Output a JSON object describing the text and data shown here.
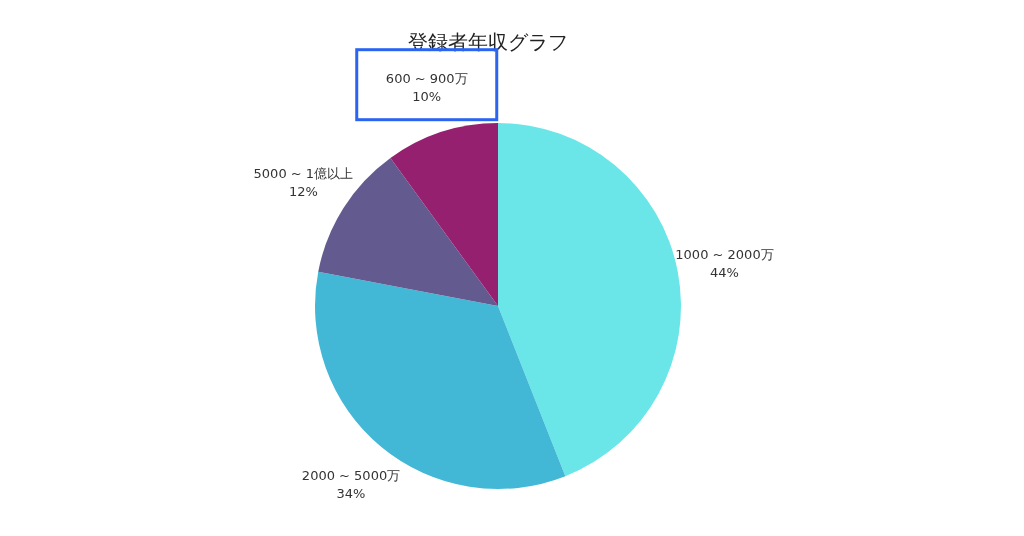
{
  "chart_data": {
    "type": "pie",
    "title": "登録者年収グラフ",
    "categories": [
      "1000 ~ 2000万",
      "2000 ~ 5000万",
      "5000 ~ 1億以上",
      "600 ~ 900万"
    ],
    "values": [
      44,
      34,
      12,
      10
    ],
    "colors": [
      "#6ae6e8",
      "#43b8d6",
      "#635a8f",
      "#952070"
    ],
    "value_labels": [
      "44%",
      "34%",
      "12%",
      "10%"
    ]
  }
}
